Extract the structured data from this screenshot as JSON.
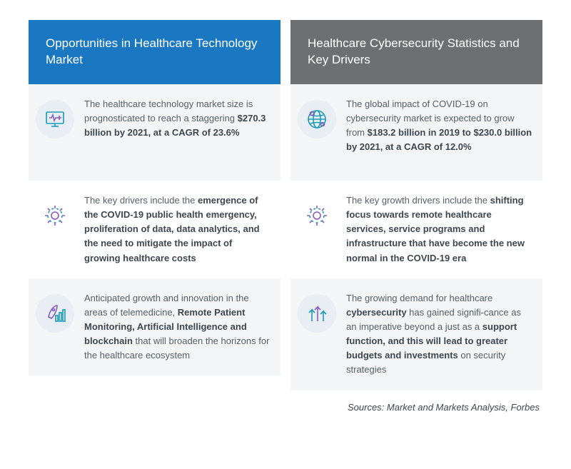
{
  "colors": {
    "header_blue": "#1a78c2",
    "header_gray": "#6d7072",
    "row_alt_bg": "#f4f5f6",
    "icon_circle_bg": "#e8eef3",
    "text_color": "#55606a",
    "bold_color": "#3d4750",
    "icon_stroke_teal": "#1a9bb8",
    "icon_stroke_purple": "#8a5cc4"
  },
  "left": {
    "title": "Opportunities in Healthcare Technology Market",
    "rows": [
      {
        "icon": "monitor-health-icon",
        "html": "The healthcare technology market size is prognosticated to reach a staggering <b>$270.3 billion by 2021, at a CAGR of 23.6%</b>"
      },
      {
        "icon": "gear-icon",
        "html": "The key drivers include the <b>emergence of the COVID-19 public health emergency, proliferation of data, data analytics, and the need to mitigate the impact of growing healthcare costs</b>"
      },
      {
        "icon": "rocket-growth-icon",
        "html": "Anticipated growth and innovation in the areas of telemedicine, <b>Remote Patient Monitoring, Artificial Intelligence and blockchain</b> that will broaden the horizons for the healthcare ecosystem"
      }
    ]
  },
  "right": {
    "title": "Healthcare Cybersecurity Statistics and Key Drivers",
    "rows": [
      {
        "icon": "globe-icon",
        "html": "The global impact of COVID-19 on cybersecurity market is expected to grow from <b>$183.2 billion in 2019 to $230.0 billion by 2021, at a CAGR of 12.0%</b>"
      },
      {
        "icon": "gear-icon",
        "html": "The key growth drivers include the <b>shifting focus towards remote healthcare services, service programs and infrastructure that have become the new normal in the COVID-19 era</b>"
      },
      {
        "icon": "arrows-up-icon",
        "html": "The growing demand for healthcare <b>cybersecurity</b> has gained signifi-cance as an imperative beyond a just as a <b>support function, and this will lead to greater budgets and investments</b> on security strategies"
      }
    ]
  },
  "sources": "Sources: Market and Markets Analysis, Forbes"
}
